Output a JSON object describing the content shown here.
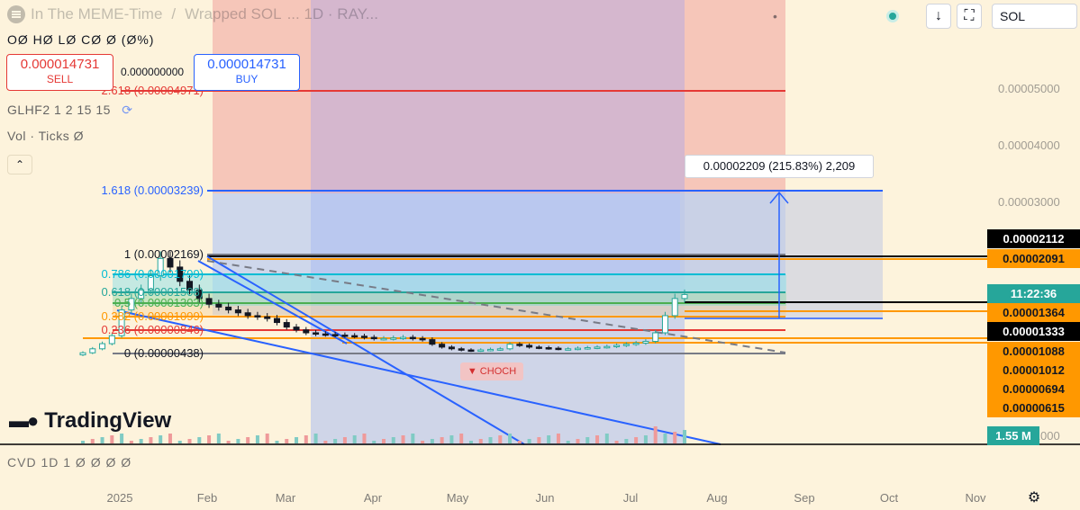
{
  "header": {
    "title": "In The MEME-Time",
    "pair": "Wrapped SOL",
    "pair_suffix": "... 1D · RAY...",
    "interval": "1D",
    "exchange": "RAY..."
  },
  "ohlc_line": "OØ  HØ  LØ  CØ  Ø (Ø%)",
  "trade": {
    "sell_price": "0.000014731",
    "sell_label": "SELL",
    "buy_price": "0.000014731",
    "buy_label": "BUY",
    "spread": "0.000000000"
  },
  "indicators": {
    "glhf": "GLHF2 1 2 15 15",
    "vol": "Vol · Ticks  Ø",
    "cvd": "CVD 1D 1  Ø  Ø  Ø  Ø"
  },
  "toolbar": {
    "symbol": "SOL",
    "down_icon": "↓",
    "fullscreen_icon": "⛶",
    "more": "•"
  },
  "brand": {
    "logo_text": "TradingView"
  },
  "measure_label": "0.00002209 (215.83%) 2,209",
  "choch_label": "▼ CHOCH",
  "colors": {
    "background": "#fdf3dc",
    "up": "#26a69a",
    "down": "#ef5350",
    "blue": "#2962ff",
    "orange": "#ff9800",
    "cyan": "#00bcd4",
    "red": "#e53935"
  },
  "chart_data": {
    "type": "candlestick",
    "x_ticks": [
      "2025",
      "Feb",
      "Mar",
      "Apr",
      "May",
      "Jun",
      "Jul",
      "Aug",
      "Sep",
      "Oct",
      "Nov"
    ],
    "y_ticks": [
      "0.00005000",
      "0.00004000",
      "0.00003000",
      "0.00001000"
    ],
    "price_badges": [
      {
        "value": "0.00002112",
        "style": "black"
      },
      {
        "value": "0.00002091",
        "style": "orange"
      },
      {
        "value": "11:22:36",
        "style": "green"
      },
      {
        "value": "0.00001364",
        "style": "orange"
      },
      {
        "value": "0.00001333",
        "style": "black"
      },
      {
        "value": "0.00001088",
        "style": "orange"
      },
      {
        "value": "0.00001012",
        "style": "orange"
      },
      {
        "value": "0.00000694",
        "style": "orange"
      },
      {
        "value": "0.00000615",
        "style": "orange"
      },
      {
        "value": "1.55 M",
        "style": "teal"
      }
    ],
    "fib_levels": [
      {
        "label": "2.618 (0.00004971)",
        "value": 4.971e-05,
        "color": "#e53935"
      },
      {
        "label": "1.618 (0.00003239)",
        "value": 3.239e-05,
        "color": "#2962ff"
      },
      {
        "label": "1 (0.00002169)",
        "value": 2.169e-05,
        "color": "#787b86"
      },
      {
        "label": "0.786 (0.00001799)",
        "value": 1.799e-05,
        "color": "#00bcd4"
      },
      {
        "label": "0.618 (0.00001508)",
        "value": 1.508e-05,
        "color": "#26a69a"
      },
      {
        "label": "0.5 (0.00001303)",
        "value": 1.303e-05,
        "color": "#4caf50"
      },
      {
        "label": "0.382 (0.00001099)",
        "value": 1.099e-05,
        "color": "#ff9800"
      },
      {
        "label": "0.236 (0.00000846)",
        "value": 8.46e-06,
        "color": "#e53935"
      },
      {
        "label": "0 (0.00000438)",
        "value": 4.38e-06,
        "color": "#787b86"
      }
    ],
    "candles_close": [
      4.5e-06,
      5.2e-06,
      6.1e-06,
      7.5e-06,
      1.2e-05,
      1.4e-05,
      1.55e-05,
      1.8e-05,
      2.1e-05,
      1.95e-05,
      1.7e-05,
      1.55e-05,
      1.4e-05,
      1.3e-05,
      1.25e-05,
      1.2e-05,
      1.15e-05,
      1.1e-05,
      1.08e-05,
      1.05e-05,
      9.8e-06,
      9e-06,
      8.5e-06,
      8e-06,
      7.8e-06,
      7.7e-06,
      7.6e-06,
      7.5e-06,
      7.4e-06,
      7.2e-06,
      7e-06,
      7e-06,
      7.1e-06,
      7.2e-06,
      7e-06,
      6.8e-06,
      6e-06,
      5.5e-06,
      5.2e-06,
      5e-06,
      4.9e-06,
      5e-06,
      5.1e-06,
      5.2e-06,
      6e-06,
      5.8e-06,
      5.5e-06,
      5.4e-06,
      5.3e-06,
      5.2e-06,
      5.2e-06,
      5.3e-06,
      5.4e-06,
      5.5e-06,
      5.6e-06,
      5.8e-06,
      6e-06,
      6.2e-06,
      6.5e-06,
      8e-06,
      1.1e-05,
      1.4e-05,
      1.47e-05
    ]
  }
}
